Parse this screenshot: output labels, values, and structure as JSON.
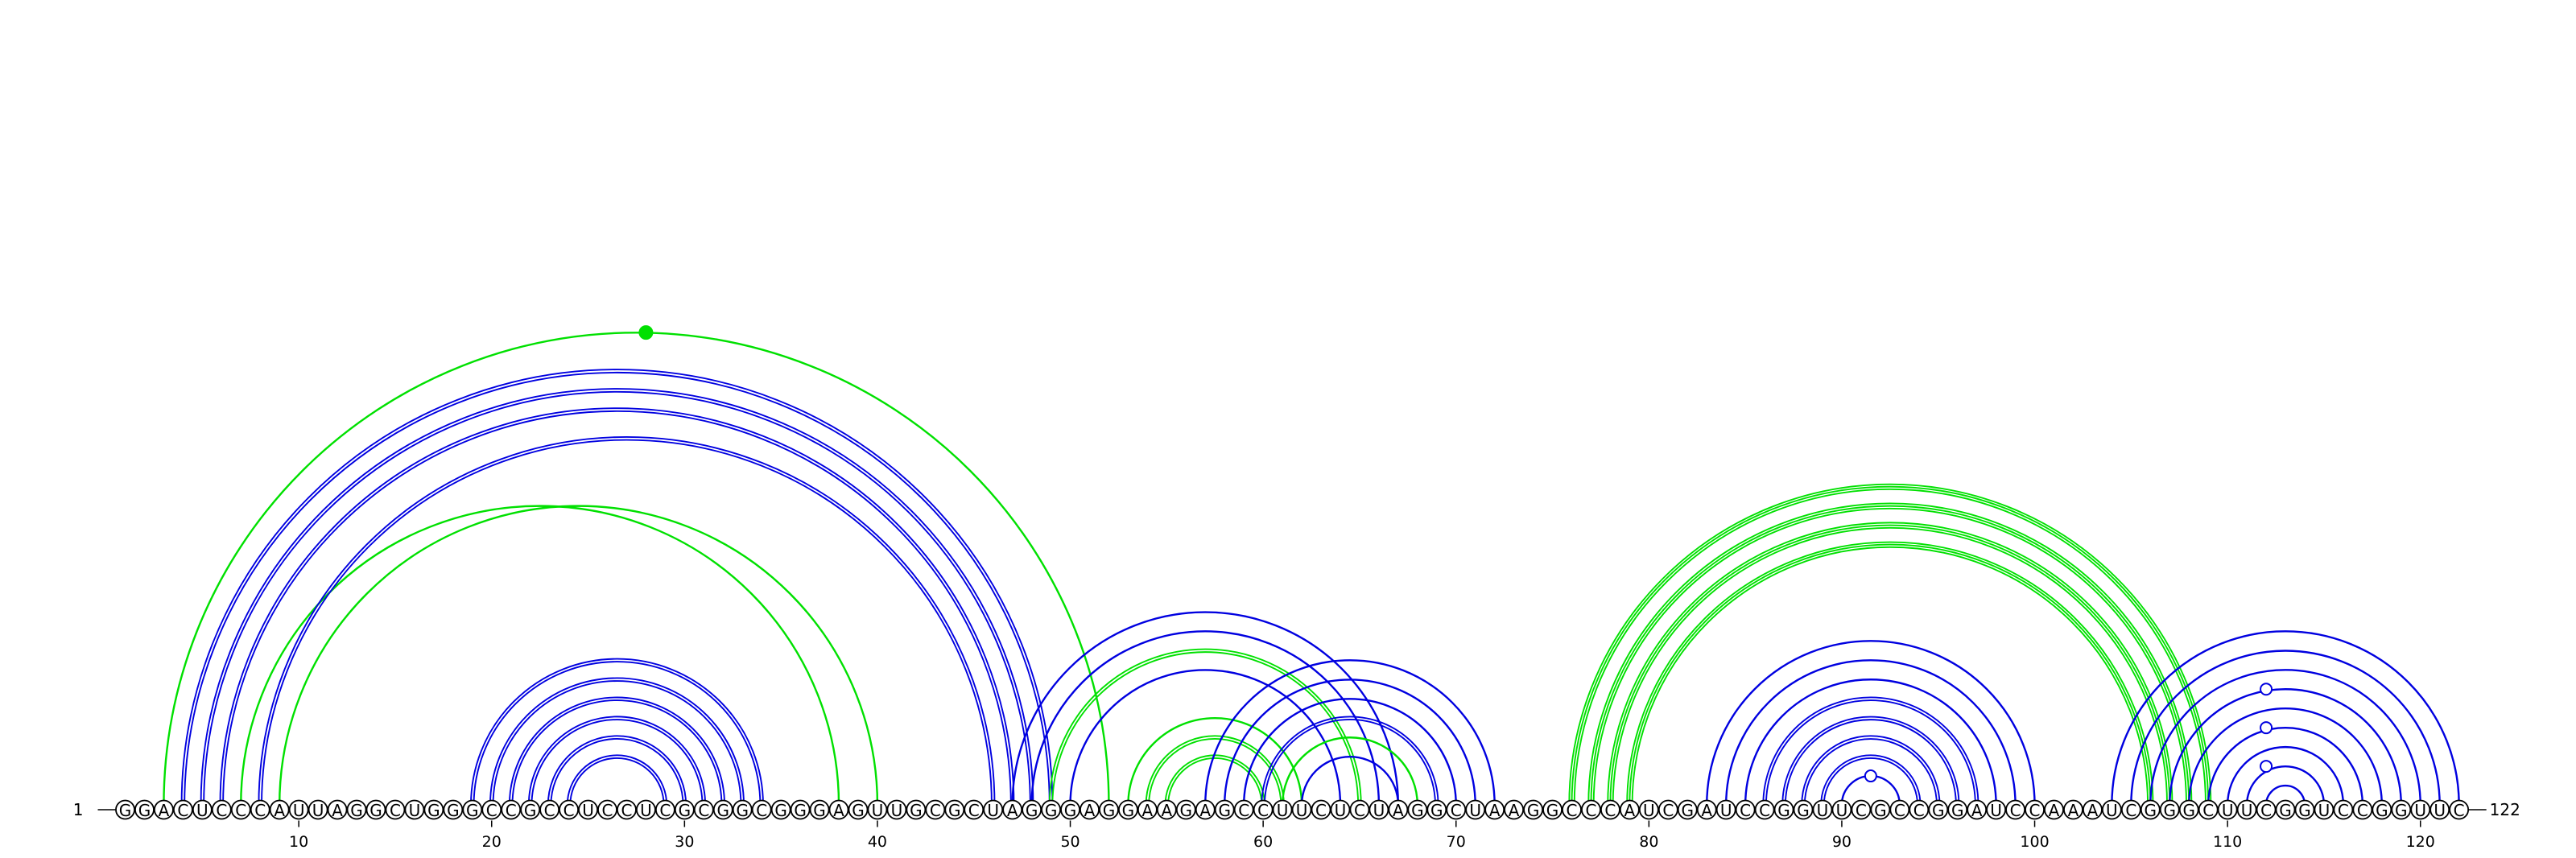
{
  "diagram": {
    "type": "rna-arc-diagram",
    "sequence": "GGACUCCCAUUAGGCUGGGCCGCCUCCUCGCGGCGGGAGUUGCGCUAGGGAGGAAGAGCCUUCUCUAGGCUAAGGCCCAUCGAUCCGGUUCGCCGGAUCCAAAUCGGGCUUCGGUCCGGUUC",
    "length": 122,
    "start_label": "1",
    "end_label": "122",
    "ticks": [
      10,
      20,
      30,
      40,
      50,
      60,
      70,
      80,
      90,
      100,
      110,
      120
    ],
    "colors": {
      "structure_a": "#0000e0",
      "structure_b": "#00e000",
      "marker_open": "#0000e0",
      "marker_filled": "#00e000"
    },
    "arcs": [
      {
        "i": 3,
        "j": 52,
        "color": "green",
        "count": 1
      },
      {
        "i": 4,
        "j": 49,
        "color": "blue",
        "count": 2
      },
      {
        "i": 5,
        "j": 48,
        "color": "blue",
        "count": 2
      },
      {
        "i": 6,
        "j": 47,
        "color": "blue",
        "count": 2
      },
      {
        "i": 7,
        "j": 38,
        "color": "green",
        "count": 1
      },
      {
        "i": 8,
        "j": 46,
        "color": "blue",
        "count": 2
      },
      {
        "i": 9,
        "j": 40,
        "color": "green",
        "count": 1
      },
      {
        "i": 19,
        "j": 34,
        "color": "blue",
        "count": 2
      },
      {
        "i": 20,
        "j": 33,
        "color": "blue",
        "count": 2
      },
      {
        "i": 21,
        "j": 32,
        "color": "blue",
        "count": 2
      },
      {
        "i": 22,
        "j": 31,
        "color": "blue",
        "count": 2
      },
      {
        "i": 23,
        "j": 30,
        "color": "blue",
        "count": 2
      },
      {
        "i": 24,
        "j": 29,
        "color": "blue",
        "count": 2
      },
      {
        "i": 47,
        "j": 67,
        "color": "blue",
        "count": 1
      },
      {
        "i": 48,
        "j": 66,
        "color": "blue",
        "count": 1
      },
      {
        "i": 49,
        "j": 65,
        "color": "green",
        "count": 2
      },
      {
        "i": 50,
        "j": 64,
        "color": "blue",
        "count": 1
      },
      {
        "i": 53,
        "j": 62,
        "color": "green",
        "count": 1
      },
      {
        "i": 54,
        "j": 61,
        "color": "green",
        "count": 2
      },
      {
        "i": 55,
        "j": 60,
        "color": "green",
        "count": 2
      },
      {
        "i": 57,
        "j": 72,
        "color": "blue",
        "count": 1
      },
      {
        "i": 58,
        "j": 71,
        "color": "blue",
        "count": 1
      },
      {
        "i": 59,
        "j": 70,
        "color": "blue",
        "count": 1
      },
      {
        "i": 60,
        "j": 69,
        "color": "blue",
        "count": 2
      },
      {
        "i": 61,
        "j": 68,
        "color": "green",
        "count": 1
      },
      {
        "i": 62,
        "j": 67,
        "color": "blue",
        "count": 1
      },
      {
        "i": 76,
        "j": 109,
        "color": "green",
        "count": 3
      },
      {
        "i": 77,
        "j": 108,
        "color": "green",
        "count": 3
      },
      {
        "i": 78,
        "j": 107,
        "color": "green",
        "count": 3
      },
      {
        "i": 79,
        "j": 106,
        "color": "green",
        "count": 3
      },
      {
        "i": 83,
        "j": 100,
        "color": "blue",
        "count": 1
      },
      {
        "i": 84,
        "j": 99,
        "color": "blue",
        "count": 1
      },
      {
        "i": 85,
        "j": 98,
        "color": "blue",
        "count": 1
      },
      {
        "i": 86,
        "j": 97,
        "color": "blue",
        "count": 2
      },
      {
        "i": 87,
        "j": 96,
        "color": "blue",
        "count": 2
      },
      {
        "i": 88,
        "j": 95,
        "color": "blue",
        "count": 2
      },
      {
        "i": 89,
        "j": 94,
        "color": "blue",
        "count": 2
      },
      {
        "i": 90,
        "j": 93,
        "color": "blue",
        "count": 1
      },
      {
        "i": 104,
        "j": 122,
        "color": "blue",
        "count": 1
      },
      {
        "i": 105,
        "j": 121,
        "color": "blue",
        "count": 1
      },
      {
        "i": 106,
        "j": 120,
        "color": "blue",
        "count": 1
      },
      {
        "i": 107,
        "j": 119,
        "color": "blue",
        "count": 1
      },
      {
        "i": 108,
        "j": 118,
        "color": "blue",
        "count": 1
      },
      {
        "i": 109,
        "j": 117,
        "color": "blue",
        "count": 1
      },
      {
        "i": 110,
        "j": 116,
        "color": "blue",
        "count": 1
      },
      {
        "i": 111,
        "j": 115,
        "color": "blue",
        "count": 1
      },
      {
        "i": 112,
        "j": 114,
        "color": "blue",
        "count": 1
      }
    ],
    "markers": [
      {
        "position": 28.0,
        "arc_i": 3,
        "arc_j": 52,
        "style": "filled",
        "color": "green"
      },
      {
        "position": 91.5,
        "arc_i": 90,
        "arc_j": 93,
        "style": "open",
        "color": "blue"
      },
      {
        "position": 112.0,
        "arc_i": 106,
        "arc_j": 118,
        "style": "open",
        "color": "blue"
      },
      {
        "position": 112.0,
        "arc_i": 108,
        "arc_j": 116,
        "style": "open",
        "color": "blue"
      },
      {
        "position": 112.0,
        "arc_i": 110,
        "arc_j": 114,
        "style": "open",
        "color": "blue"
      }
    ]
  }
}
